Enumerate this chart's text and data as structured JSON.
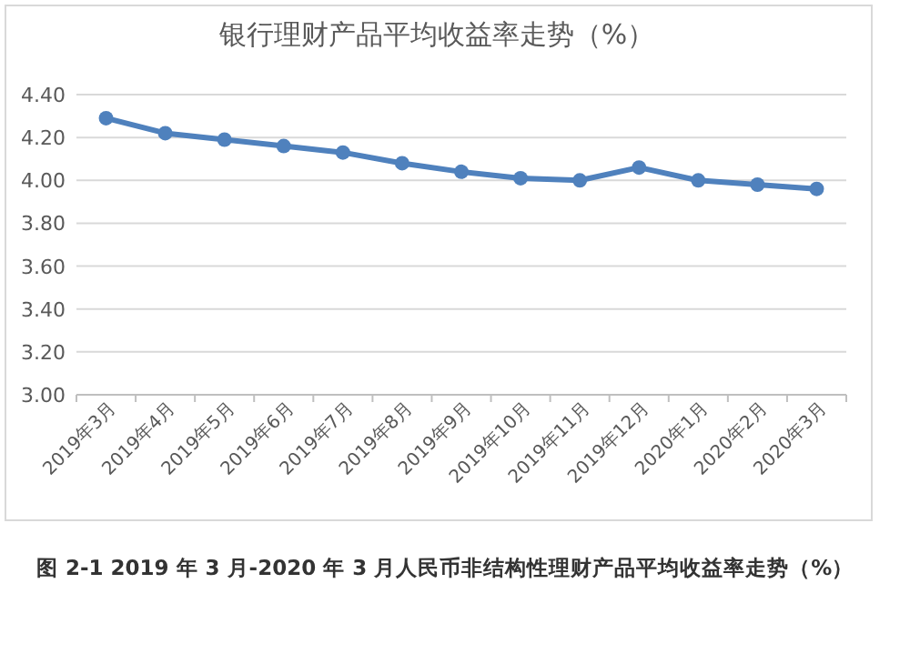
{
  "chart_data": {
    "type": "line",
    "title": "银行理财产品平均收益率走势（%）",
    "categories": [
      "2019年3月",
      "2019年4月",
      "2019年5月",
      "2019年6月",
      "2019年7月",
      "2019年8月",
      "2019年9月",
      "2019年10月",
      "2019年11月",
      "2019年12月",
      "2020年1月",
      "2020年2月",
      "2020年3月"
    ],
    "series": [
      {
        "color": "#4f81bd",
        "values": [
          4.29,
          4.22,
          4.19,
          4.16,
          4.13,
          4.08,
          4.04,
          4.01,
          4.0,
          4.06,
          4.0,
          3.98,
          3.96
        ]
      }
    ],
    "ylim": [
      3.0,
      4.4
    ],
    "yticks": [
      {
        "value": 3.0,
        "label": "3.00"
      },
      {
        "value": 3.2,
        "label": "3.20"
      },
      {
        "value": 3.4,
        "label": "3.40"
      },
      {
        "value": 3.6,
        "label": "3.60"
      },
      {
        "value": 3.8,
        "label": "3.80"
      },
      {
        "value": 4.0,
        "label": "4.00"
      },
      {
        "value": 4.2,
        "label": "4.20"
      },
      {
        "value": 4.4,
        "label": "4.40"
      }
    ],
    "grid": "y",
    "marker": "circle",
    "annotations": [
      "图 2-1 2019 年 3 月-2020 年 3 月人民币非结构性理财产品平均收益率走势（%）"
    ]
  }
}
